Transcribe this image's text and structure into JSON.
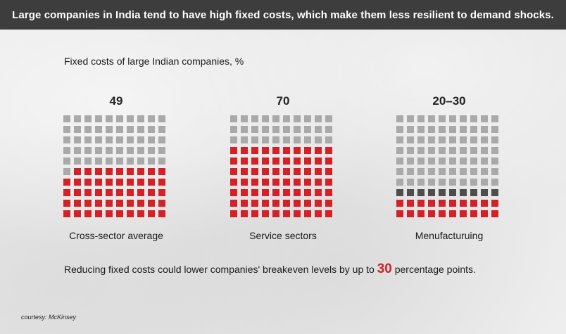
{
  "header": {
    "title": "Large companies in India tend to have high fixed costs, which make them less resilient to demand shocks."
  },
  "chart_data": {
    "type": "waffle",
    "title": "Fixed costs of large Indian companies, %",
    "grid": {
      "rows": 10,
      "cols": 10
    },
    "colors": {
      "fixed": "#d42027",
      "range": "#4d4d4d",
      "other": "#a9a9a9"
    },
    "panels": [
      {
        "label": "Cross-sector average",
        "value_label": "49",
        "filled": 49,
        "range_extra": 0
      },
      {
        "label": "Service sectors",
        "value_label": "70",
        "filled": 70,
        "range_extra": 0
      },
      {
        "label": "Menufacturuing",
        "value_label": "20–30",
        "filled": 20,
        "range_extra": 10
      }
    ]
  },
  "note": {
    "before": "Reducing fixed costs could lower companies' breakeven levels by up to ",
    "highlight": "30",
    "after": " percentage points."
  },
  "credit": "courtesy: McKinsey"
}
